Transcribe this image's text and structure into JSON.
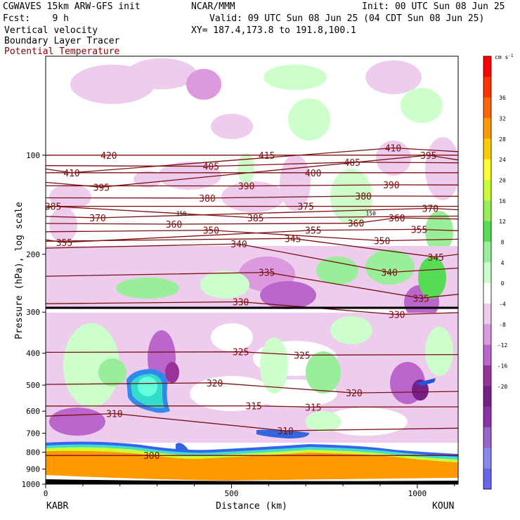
{
  "header": {
    "model": "CGWAVES 15km ARW-GFS init",
    "fcst": "Fcst:    9 h",
    "org": "NCAR/MMM",
    "init": "Init: 00 UTC Sun 08 Jun 25",
    "valid": "Valid: 09 UTC Sun 08 Jun 25 (04 CDT Sun 08 Jun 25)",
    "xy": "XY= 187.4,173.8 to 191.8,100.1",
    "field1": "Vertical velocity",
    "field2": "Boundary Layer Tracer",
    "field3": "Potential Temperature"
  },
  "colors": {
    "theta": "#7a1010",
    "tropopause": "#000000",
    "land": "#ff9900"
  },
  "chart_data": {
    "type": "heatmap",
    "title": "",
    "xlabel": "Distance (km)",
    "ylabel": "Pressure (hPa), log scale",
    "xlim": [
      0,
      1110
    ],
    "ylim": [
      1000,
      50
    ],
    "x_ticks": [
      "0",
      "500",
      "1000"
    ],
    "y_ticks": [
      100,
      200,
      300,
      400,
      500,
      600,
      700,
      800,
      900,
      1000
    ],
    "y_scale": "log",
    "endpoints": {
      "left": "KABR",
      "right": "KOUN"
    },
    "colorbar": {
      "units": "cm s",
      "units_exp": "-1",
      "ticks": [
        "36",
        "32",
        "28",
        "24",
        "20",
        "16",
        "12",
        "8",
        "4",
        "0",
        "-4",
        "-8",
        "-12",
        "-16",
        "-20"
      ],
      "colors": [
        "#ff0000",
        "#ff3300",
        "#ff6600",
        "#ff9900",
        "#ffcc00",
        "#ffff33",
        "#ccff33",
        "#99ee55",
        "#55dd55",
        "#99ee99",
        "#ccffcc",
        "#ffffff",
        "#eeccee",
        "#dd99dd",
        "#bb66cc",
        "#993399",
        "#771f88",
        "#8833aa",
        "#9966cc",
        "#8888ee",
        "#6666ee"
      ]
    },
    "theta_labels": [
      {
        "text": "420",
        "x": 170,
        "p": 100
      },
      {
        "text": "415",
        "x": 595,
        "p": 100
      },
      {
        "text": "410",
        "x": 70,
        "p": 113
      },
      {
        "text": "410",
        "x": 935,
        "p": 95
      },
      {
        "text": "405",
        "x": 445,
        "p": 108
      },
      {
        "text": "405",
        "x": 825,
        "p": 105
      },
      {
        "text": "400",
        "x": 720,
        "p": 113
      },
      {
        "text": "395",
        "x": 150,
        "p": 125
      },
      {
        "text": "395",
        "x": 1030,
        "p": 100
      },
      {
        "text": "390",
        "x": 540,
        "p": 124
      },
      {
        "text": "390",
        "x": 930,
        "p": 123
      },
      {
        "text": "385",
        "x": 20,
        "p": 143
      },
      {
        "text": "385",
        "x": 565,
        "p": 155
      },
      {
        "text": "380",
        "x": 435,
        "p": 135
      },
      {
        "text": "380",
        "x": 855,
        "p": 133
      },
      {
        "text": "375",
        "x": 700,
        "p": 143
      },
      {
        "text": "370",
        "x": 140,
        "p": 155
      },
      {
        "text": "370",
        "x": 1035,
        "p": 145
      },
      {
        "text": "360",
        "x": 345,
        "p": 162
      },
      {
        "text": "360",
        "x": 835,
        "p": 161
      },
      {
        "text": "360",
        "x": 945,
        "p": 155
      },
      {
        "text": "355",
        "x": 50,
        "p": 184
      },
      {
        "text": "355",
        "x": 720,
        "p": 169
      },
      {
        "text": "355",
        "x": 1005,
        "p": 168
      },
      {
        "text": "350",
        "x": 445,
        "p": 169
      },
      {
        "text": "350",
        "x": 905,
        "p": 182
      },
      {
        "text": "345",
        "x": 665,
        "p": 179
      },
      {
        "text": "345",
        "x": 1050,
        "p": 204
      },
      {
        "text": "340",
        "x": 520,
        "p": 186
      },
      {
        "text": "340",
        "x": 925,
        "p": 227
      },
      {
        "text": "335",
        "x": 595,
        "p": 227
      },
      {
        "text": "335",
        "x": 1010,
        "p": 272
      },
      {
        "text": "330",
        "x": 525,
        "p": 279
      },
      {
        "text": "330",
        "x": 945,
        "p": 305
      },
      {
        "text": "325",
        "x": 525,
        "p": 396
      },
      {
        "text": "325",
        "x": 690,
        "p": 405
      },
      {
        "text": "320",
        "x": 455,
        "p": 492
      },
      {
        "text": "320",
        "x": 830,
        "p": 528
      },
      {
        "text": "315",
        "x": 560,
        "p": 578
      },
      {
        "text": "315",
        "x": 720,
        "p": 583
      },
      {
        "text": "310",
        "x": 185,
        "p": 610
      },
      {
        "text": "310",
        "x": 645,
        "p": 688
      },
      {
        "text": "300",
        "x": 285,
        "p": 818
      }
    ],
    "tropopause_marks": [
      {
        "text": "150",
        "x": 365,
        "p": 150
      },
      {
        "text": "150",
        "x": 875,
        "p": 150
      }
    ]
  }
}
